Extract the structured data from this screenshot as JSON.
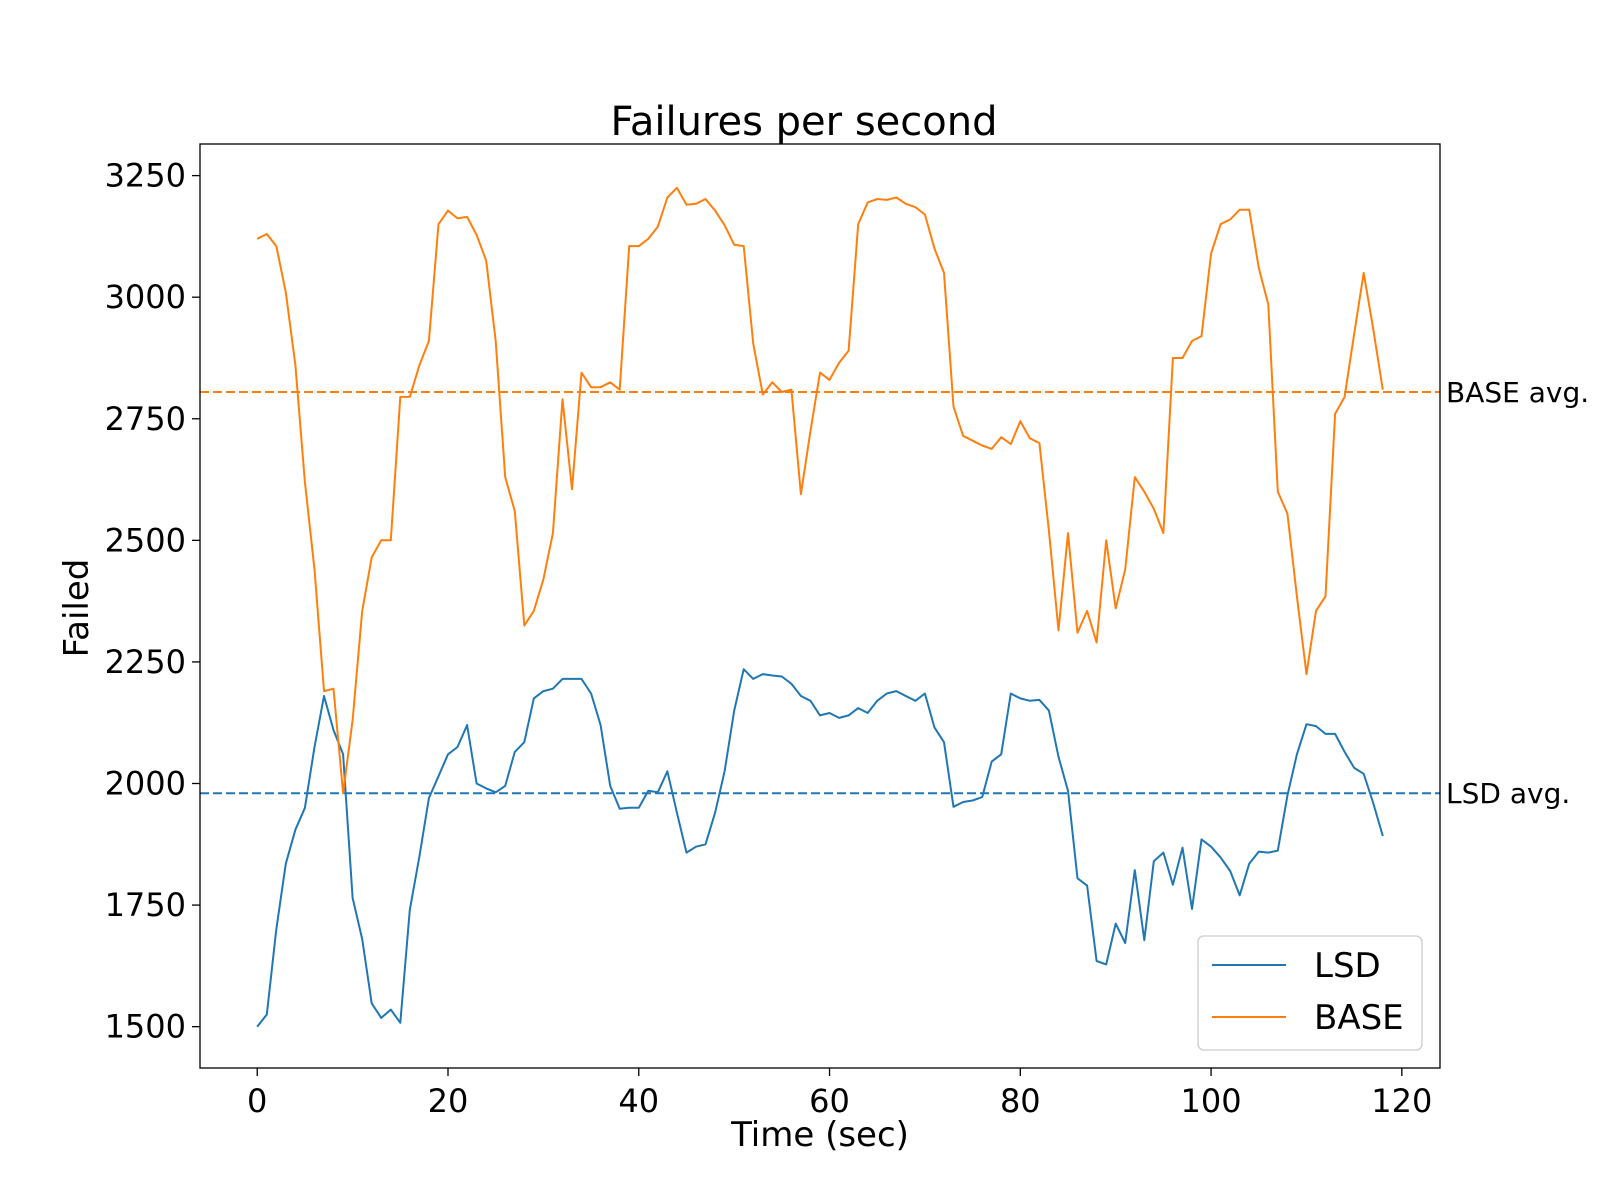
{
  "chart_data": {
    "type": "line",
    "title": "Failures per second",
    "xlabel": "Time (sec)",
    "ylabel": "Failed",
    "xlim": [
      -6,
      124
    ],
    "ylim": [
      1415,
      3315
    ],
    "xticks": [
      0,
      20,
      40,
      60,
      80,
      100,
      120
    ],
    "yticks": [
      1500,
      1750,
      2000,
      2250,
      2500,
      2750,
      3000,
      3250
    ],
    "grid": false,
    "legend_position": "lower-right",
    "x": [
      0,
      1,
      2,
      3,
      4,
      5,
      6,
      7,
      8,
      9,
      10,
      11,
      12,
      13,
      14,
      15,
      16,
      17,
      18,
      19,
      20,
      21,
      22,
      23,
      24,
      25,
      26,
      27,
      28,
      29,
      30,
      31,
      32,
      33,
      34,
      35,
      36,
      37,
      38,
      39,
      40,
      41,
      42,
      43,
      44,
      45,
      46,
      47,
      48,
      49,
      50,
      51,
      52,
      53,
      54,
      55,
      56,
      57,
      58,
      59,
      60,
      61,
      62,
      63,
      64,
      65,
      66,
      67,
      68,
      69,
      70,
      71,
      72,
      73,
      74,
      75,
      76,
      77,
      78,
      79,
      80,
      81,
      82,
      83,
      84,
      85,
      86,
      87,
      88,
      89,
      90,
      91,
      92,
      93,
      94,
      95,
      96,
      97,
      98,
      99,
      100,
      101,
      102,
      103,
      104,
      105,
      106,
      107,
      108,
      109,
      110,
      111,
      112,
      113,
      114,
      115,
      116,
      117,
      118
    ],
    "series": [
      {
        "name": "LSD",
        "color": "#1f77b4",
        "values": [
          1500,
          1525,
          1700,
          1835,
          1905,
          1950,
          2075,
          2180,
          2110,
          2060,
          1765,
          1680,
          1548,
          1518,
          1535,
          1508,
          1740,
          1850,
          1970,
          2015,
          2060,
          2075,
          2120,
          2000,
          1990,
          1982,
          1995,
          2065,
          2085,
          2175,
          2190,
          2195,
          2215,
          2215,
          2215,
          2185,
          2120,
          1995,
          1948,
          1950,
          1950,
          1985,
          1982,
          2025,
          1940,
          1858,
          1870,
          1875,
          1940,
          2025,
          2150,
          2235,
          2215,
          2225,
          2222,
          2220,
          2205,
          2180,
          2170,
          2140,
          2145,
          2135,
          2140,
          2155,
          2145,
          2170,
          2185,
          2190,
          2180,
          2170,
          2185,
          2115,
          2085,
          1952,
          1962,
          1965,
          1972,
          2045,
          2060,
          2185,
          2175,
          2170,
          2172,
          2150,
          2055,
          1985,
          1805,
          1790,
          1635,
          1628,
          1712,
          1672,
          1822,
          1678,
          1840,
          1858,
          1792,
          1868,
          1742,
          1885,
          1870,
          1848,
          1820,
          1770,
          1835,
          1860,
          1858,
          1862,
          1975,
          2060,
          2122,
          2118,
          2102,
          2102,
          2065,
          2032,
          2020,
          1960,
          1892
        ]
      },
      {
        "name": "BASE",
        "color": "#ff7f0e",
        "values": [
          3120,
          3130,
          3105,
          3010,
          2860,
          2620,
          2440,
          2190,
          2195,
          1980,
          2130,
          2355,
          2465,
          2500,
          2500,
          2795,
          2795,
          2860,
          2910,
          3150,
          3178,
          3162,
          3165,
          3128,
          3075,
          2910,
          2630,
          2560,
          2325,
          2355,
          2420,
          2515,
          2790,
          2605,
          2845,
          2815,
          2815,
          2825,
          2810,
          3105,
          3105,
          3120,
          3145,
          3205,
          3225,
          3190,
          3192,
          3202,
          3178,
          3148,
          3108,
          3105,
          2905,
          2800,
          2825,
          2805,
          2810,
          2595,
          2725,
          2845,
          2830,
          2865,
          2890,
          3150,
          3195,
          3202,
          3200,
          3205,
          3192,
          3185,
          3170,
          3100,
          3050,
          2775,
          2715,
          2705,
          2695,
          2688,
          2712,
          2698,
          2745,
          2710,
          2700,
          2520,
          2315,
          2515,
          2310,
          2355,
          2290,
          2500,
          2360,
          2440,
          2630,
          2600,
          2565,
          2515,
          2875,
          2875,
          2910,
          2920,
          3090,
          3150,
          3160,
          3180,
          3180,
          3060,
          2985,
          2600,
          2555,
          2385,
          2225,
          2355,
          2385,
          2760,
          2795,
          2925,
          3050,
          2935,
          2810
        ]
      }
    ],
    "reference_lines": [
      {
        "label": "BASE avg.",
        "y": 2805,
        "color": "#ff7f0e",
        "style": "dashed"
      },
      {
        "label": "LSD avg.",
        "y": 1980,
        "color": "#1f77b4",
        "style": "dashed"
      }
    ]
  }
}
